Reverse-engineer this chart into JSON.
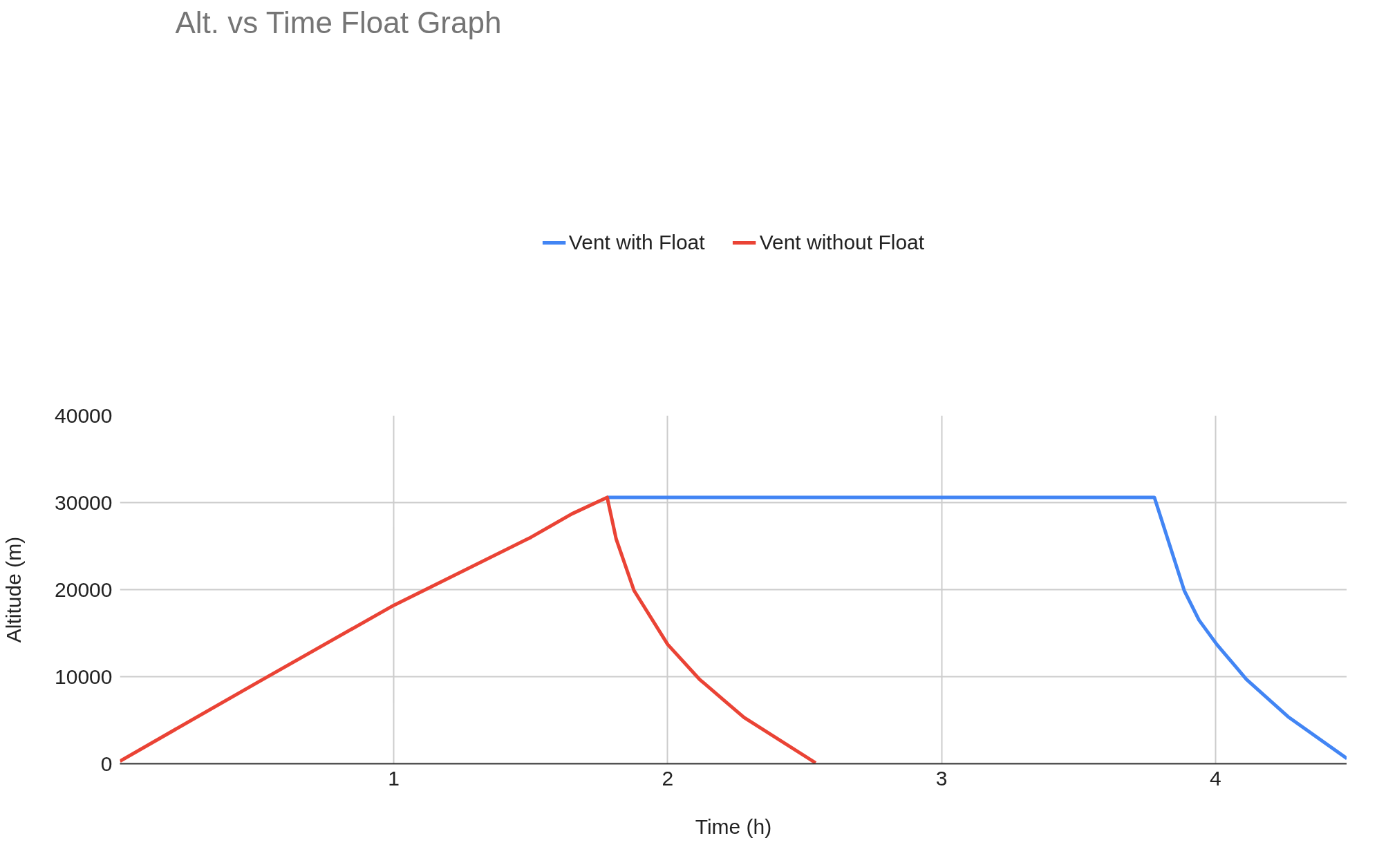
{
  "chart_data": {
    "type": "line",
    "title": "Alt. vs Time Float Graph",
    "xlabel": "Time (h)",
    "ylabel": "Altitude (m)",
    "xlim": [
      0,
      4.48
    ],
    "xticks": [
      1,
      2,
      3,
      4
    ],
    "ylim": [
      0,
      40000
    ],
    "yticks": [
      0,
      10000,
      20000,
      30000,
      40000
    ],
    "grid": true,
    "legend": "top",
    "marker": "none",
    "line_style": "solid",
    "series": [
      {
        "name": "Vent with Float",
        "color": "#4285f4",
        "x": [
          1.779,
          3.777,
          3.832,
          3.886,
          3.94,
          4.005,
          4.113,
          4.265,
          4.48
        ],
        "values": [
          30600,
          30600,
          25200,
          19900,
          16500,
          13700,
          9700,
          5400,
          600
        ]
      },
      {
        "name": "Vent without Float",
        "color": "#ea4335",
        "x": [
          0,
          0.5,
          1,
          1.5,
          1.65,
          1.779,
          1.812,
          1.877,
          2.0,
          2.116,
          2.279,
          2.54
        ],
        "values": [
          300,
          9300,
          18200,
          26000,
          28700,
          30600,
          25800,
          19900,
          13700,
          9700,
          5300,
          100
        ]
      }
    ]
  }
}
